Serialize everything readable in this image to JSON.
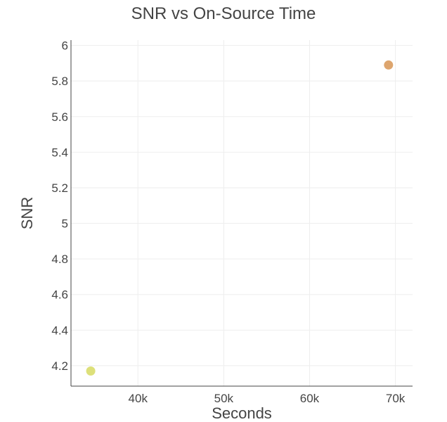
{
  "chart_data": {
    "type": "scatter",
    "title": "SNR vs On-Source Time",
    "xlabel": "Seconds",
    "ylabel": "SNR",
    "xlim": [
      32200,
      72000
    ],
    "ylim": [
      4.085,
      6.03
    ],
    "grid": true,
    "xticks": [
      {
        "value": 40000,
        "label": "40k"
      },
      {
        "value": 50000,
        "label": "50k"
      },
      {
        "value": 60000,
        "label": "60k"
      },
      {
        "value": 70000,
        "label": "70k"
      }
    ],
    "yticks": [
      {
        "value": 4.2,
        "label": "4.2"
      },
      {
        "value": 4.4,
        "label": "4.4"
      },
      {
        "value": 4.6,
        "label": "4.6"
      },
      {
        "value": 4.8,
        "label": "4.8"
      },
      {
        "value": 5.0,
        "label": "5"
      },
      {
        "value": 5.2,
        "label": "5.2"
      },
      {
        "value": 5.4,
        "label": "5.4"
      },
      {
        "value": 5.6,
        "label": "5.6"
      },
      {
        "value": 5.8,
        "label": "5.8"
      },
      {
        "value": 6.0,
        "label": "6"
      }
    ],
    "points": [
      {
        "x": 34500,
        "y": 4.17,
        "color": "#dde07a"
      },
      {
        "x": 69200,
        "y": 5.89,
        "color": "#dda56e"
      }
    ]
  }
}
